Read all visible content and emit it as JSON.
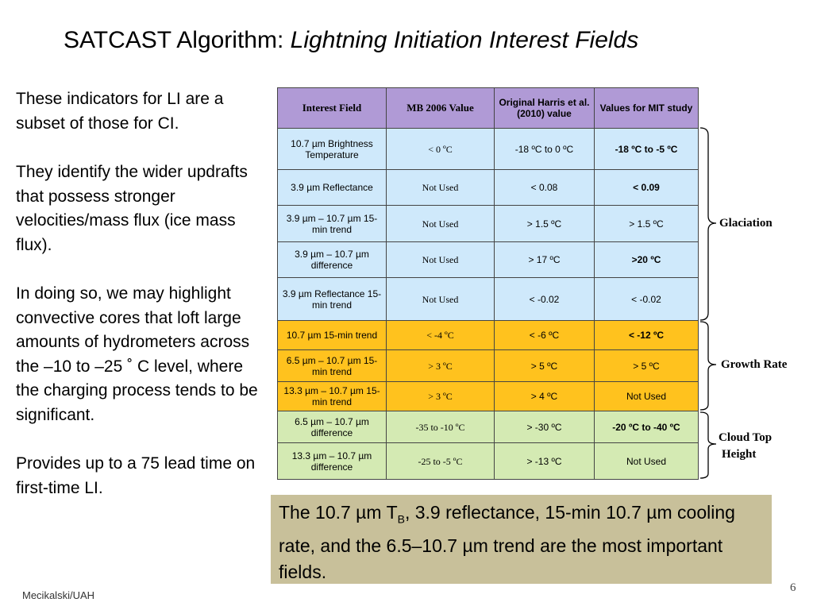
{
  "title": {
    "main": "SATCAST Algorithm: ",
    "italic": "Lightning Initiation Interest Fields"
  },
  "left_text": [
    "These indicators for LI are a subset of those for CI.",
    "They identify the wider updrafts that possess stronger velocities/mass flux (ice mass flux).",
    "In doing so, we may highlight convective cores that loft large amounts of hydrometers across the –10 to –25 ˚ C level, where the charging process tends to be significant.",
    "Provides up to a 75 lead time on first-time LI."
  ],
  "table": {
    "headers": [
      "Interest Field",
      "MB 2006 Value",
      "Original Harris et al. (2010) value",
      "Values for MIT study"
    ],
    "rows": [
      {
        "group": "glac",
        "field": "10.7 µm Brightness Temperature",
        "mb": "< 0 ºC",
        "harris": "-18 ºC to 0 ºC",
        "mit": "-18 ºC to -5 ºC",
        "mit_bold": true
      },
      {
        "group": "glac",
        "field": "3.9 µm Reflectance",
        "mb": "Not Used",
        "harris": "< 0.08",
        "mit": "< 0.09",
        "mit_bold": true
      },
      {
        "group": "glac",
        "field": "3.9 µm – 10.7 µm 15-min trend",
        "mb": "Not Used",
        "harris": "> 1.5 ºC",
        "mit": "> 1.5 ºC",
        "mit_bold": false
      },
      {
        "group": "glac",
        "field": "3.9 µm – 10.7 µm difference",
        "mb": "Not Used",
        "harris": "> 17 ºC",
        "mit": ">20 ºC",
        "mit_bold": true
      },
      {
        "group": "glac",
        "field": "3.9 µm Reflectance 15-min trend",
        "mb": "Not Used",
        "harris": "< -0.02",
        "mit": "< -0.02",
        "mit_bold": false
      },
      {
        "group": "grow",
        "field": "10.7 µm 15-min trend",
        "mb": "< -4 ºC",
        "harris": "< -6 ºC",
        "mit": "< -12 ºC",
        "mit_bold": true
      },
      {
        "group": "grow",
        "field": "6.5 µm – 10.7 µm 15-min trend",
        "mb": "> 3 ºC",
        "harris": "> 5 ºC",
        "mit": "> 5 ºC",
        "mit_bold": false
      },
      {
        "group": "grow",
        "field": "13.3 µm – 10.7 µm 15-min trend",
        "mb": "> 3 ºC",
        "harris": "> 4 ºC",
        "mit": "Not Used",
        "mit_bold": false
      },
      {
        "group": "ctop",
        "field": "6.5 µm – 10.7 µm difference",
        "mb": "-35 to -10 ºC",
        "harris": "> -30 ºC",
        "mit": "-20 ºC to -40 ºC",
        "mit_bold": true
      },
      {
        "group": "ctop",
        "field": "13.3 µm – 10.7 µm difference",
        "mb": "-25 to -5 ºC",
        "harris": "> -13 ºC",
        "mit": "Not Used",
        "mit_bold": false
      }
    ]
  },
  "braces": {
    "glaciation": "Glaciation",
    "growth_rate": "Growth Rate",
    "cloud_top": [
      "Cloud Top",
      "Height"
    ]
  },
  "callout": {
    "part1": "The 10.7 µm T",
    "sub": "B",
    "part2": ", 3.9 reflectance, 15-min 10.7 µm cooling rate, and the 6.5–10.7 µm trend are the most important fields."
  },
  "footer": "Mecikalski/UAH",
  "page_number": "6",
  "colors": {
    "header": "#b09ad6",
    "glaciation": "#cfe9fb",
    "growth_rate": "#ffc21e",
    "cloud_top": "#d4eab3",
    "callout": "#c8c09a"
  }
}
